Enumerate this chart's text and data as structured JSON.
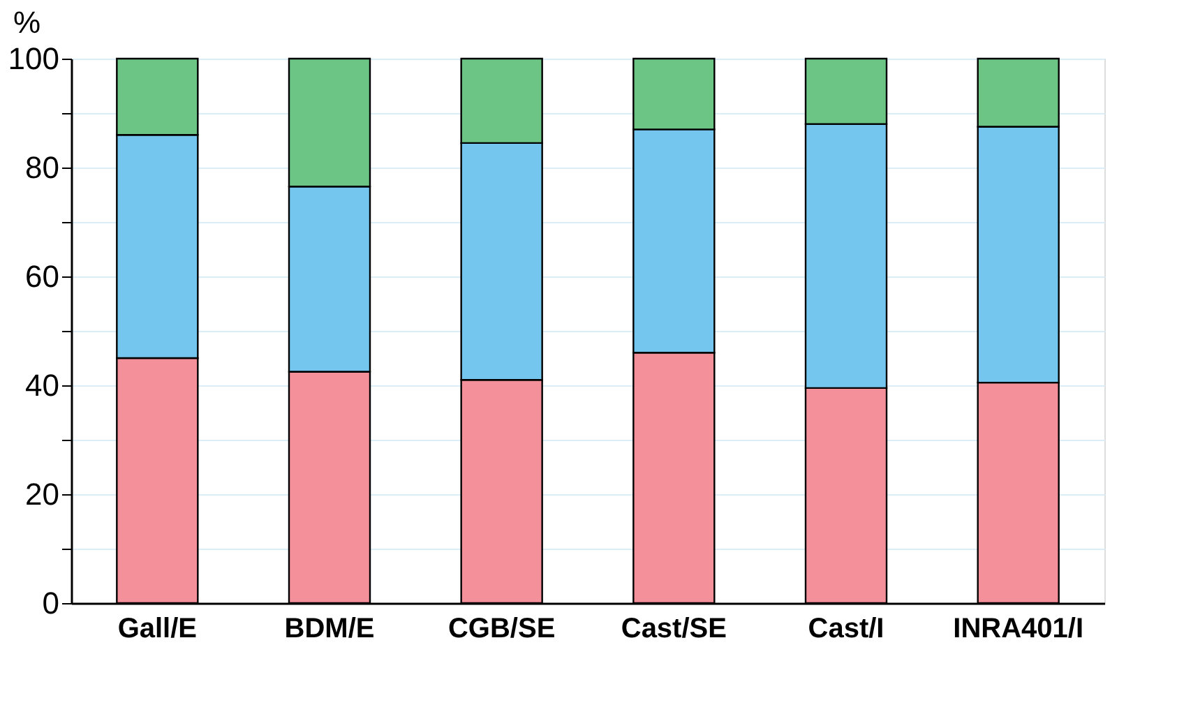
{
  "chart_data": {
    "type": "bar",
    "stacked": true,
    "ylabel": "%",
    "categories": [
      "Gall/E",
      "BDM/E",
      "CGB/SE",
      "Cast/SE",
      "Cast/I",
      "INRA401/I"
    ],
    "series": [
      {
        "color": "#f4909a",
        "values": [
          45,
          42.5,
          41,
          46,
          39.5,
          40.5
        ]
      },
      {
        "color": "#74c6ee",
        "values": [
          41,
          34,
          43.5,
          41,
          48.5,
          47
        ]
      },
      {
        "color": "#6cc485",
        "values": [
          14,
          23.5,
          15.5,
          13,
          12,
          12.5
        ]
      }
    ],
    "ylim": [
      0,
      100
    ],
    "yticks": [
      0,
      {
        "value": 10,
        "label": null
      },
      20,
      {
        "value": 30,
        "label": null
      },
      40,
      {
        "value": 50,
        "label": null
      },
      60,
      {
        "value": 70,
        "label": null
      },
      80,
      {
        "value": 90,
        "label": null
      },
      100
    ],
    "grid": "y",
    "legend": false
  }
}
